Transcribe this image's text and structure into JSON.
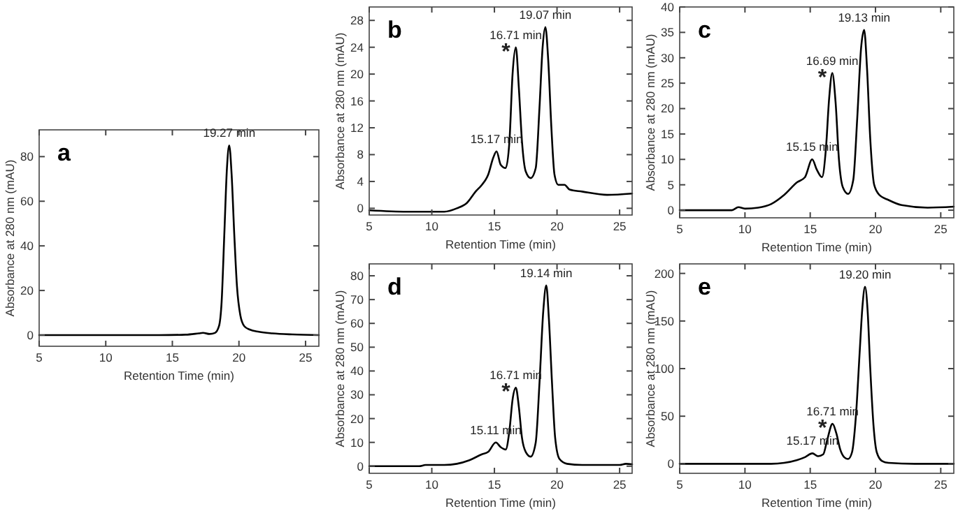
{
  "chart_data": [
    {
      "type": "line",
      "title": "a",
      "xlabel": "Retention Time (min)",
      "ylabel": "Absorbance at 280 nm (mAU)",
      "xlim": [
        5,
        26
      ],
      "ylim": [
        -5,
        92
      ],
      "xticks": [
        5,
        10,
        15,
        20,
        25
      ],
      "yticks": [
        0,
        20,
        40,
        60,
        80
      ],
      "series": [
        {
          "color": "#000000",
          "x": [
            5,
            8,
            11,
            14,
            16,
            17,
            17.3,
            17.8,
            18.2,
            18.5,
            18.7,
            18.9,
            19.1,
            19.27,
            19.45,
            19.65,
            19.85,
            20.1,
            20.4,
            20.8,
            21.5,
            22.5,
            24,
            26
          ],
          "values": [
            0,
            0,
            0,
            0,
            0.2,
            0.8,
            1,
            0.5,
            1,
            4,
            15,
            45,
            75,
            85,
            72,
            45,
            22,
            9,
            4,
            2.5,
            1.5,
            0.8,
            0.3,
            0
          ]
        }
      ],
      "annotations": [
        {
          "text": "19.27 min",
          "x": 19.27,
          "y": 85
        }
      ]
    },
    {
      "type": "line",
      "title": "b",
      "xlabel": "Retention Time (min)",
      "ylabel": "Absorbance at 280 nm (mAU)",
      "xlim": [
        5,
        26
      ],
      "ylim": [
        -1,
        30
      ],
      "xticks": [
        5,
        10,
        15,
        20,
        25
      ],
      "yticks": [
        0,
        4,
        8,
        12,
        16,
        20,
        24,
        28
      ],
      "series": [
        {
          "color": "#000000",
          "x": [
            5,
            8,
            11,
            12,
            12.8,
            13.5,
            14,
            14.5,
            14.9,
            15.17,
            15.5,
            15.9,
            16.2,
            16.45,
            16.71,
            16.95,
            17.2,
            17.5,
            17.9,
            18.3,
            18.6,
            18.85,
            19.07,
            19.3,
            19.55,
            19.8,
            20.1,
            20.6,
            21,
            22,
            24,
            26
          ],
          "values": [
            -0.3,
            -0.5,
            -0.5,
            0,
            0.8,
            2.5,
            3.5,
            5,
            7.5,
            8.5,
            6.5,
            6,
            10,
            20,
            24,
            18,
            10,
            5.5,
            4.5,
            6,
            15,
            24,
            27,
            22,
            12,
            5,
            3.5,
            3.5,
            2.8,
            2.5,
            2,
            2.2
          ]
        }
      ],
      "annotations": [
        {
          "text": "15.17 min",
          "x": 15.17,
          "y": 8.5
        },
        {
          "text": "16.71 min",
          "x": 16.71,
          "y": 24
        },
        "*",
        {
          "text": "19.07 min",
          "x": 19.07,
          "y": 27
        }
      ]
    },
    {
      "type": "line",
      "title": "c",
      "xlabel": "Retention Time (min)",
      "ylabel": "Absorbance at 280 nm (mAU)",
      "xlim": [
        5,
        26
      ],
      "ylim": [
        -1.5,
        40
      ],
      "xticks": [
        5,
        10,
        15,
        20,
        25
      ],
      "yticks": [
        0,
        5,
        10,
        15,
        20,
        25,
        30,
        35,
        40
      ],
      "series": [
        {
          "color": "#000000",
          "x": [
            5,
            9,
            9.5,
            10,
            11,
            12,
            13,
            14,
            14.6,
            15.15,
            15.5,
            15.9,
            16.2,
            16.45,
            16.69,
            16.95,
            17.2,
            17.5,
            17.9,
            18.3,
            18.6,
            18.9,
            19.13,
            19.35,
            19.6,
            19.9,
            20.3,
            21,
            22,
            24,
            26
          ],
          "values": [
            0,
            0,
            0.6,
            0.3,
            0.5,
            1.2,
            3,
            5.5,
            6.5,
            10,
            8,
            6.5,
            12,
            22,
            27,
            21,
            10,
            4.5,
            3.2,
            6,
            18,
            32,
            35.5,
            28,
            14,
            5,
            3,
            2,
            1,
            0.5,
            0.7
          ]
        }
      ],
      "annotations": [
        {
          "text": "15.15 min",
          "x": 15.15,
          "y": 10
        },
        {
          "text": "16.69 min",
          "x": 16.69,
          "y": 27
        },
        "*",
        {
          "text": "19.13 min",
          "x": 19.13,
          "y": 35.5
        }
      ]
    },
    {
      "type": "line",
      "title": "d",
      "xlabel": "Retention Time (min)",
      "ylabel": "Absorbance at 280 nm (mAU)",
      "xlim": [
        5,
        26
      ],
      "ylim": [
        -3,
        85
      ],
      "xticks": [
        5,
        10,
        15,
        20,
        25
      ],
      "yticks": [
        0,
        10,
        20,
        30,
        40,
        50,
        60,
        70,
        80
      ],
      "series": [
        {
          "color": "#000000",
          "x": [
            5,
            9,
            9.5,
            11,
            12,
            13,
            14,
            14.5,
            15.11,
            15.5,
            15.9,
            16.2,
            16.45,
            16.71,
            16.95,
            17.2,
            17.5,
            17.9,
            18.3,
            18.6,
            18.9,
            19.14,
            19.35,
            19.6,
            19.85,
            20.2,
            20.8,
            22,
            25,
            25.5,
            26
          ],
          "values": [
            0,
            0,
            0.5,
            0.5,
            1,
            2.5,
            5,
            6,
            10,
            8,
            7,
            15,
            28,
            33,
            25,
            12,
            6,
            4,
            10,
            35,
            65,
            76,
            62,
            35,
            12,
            3,
            1,
            0.5,
            0.5,
            1,
            0.8
          ]
        }
      ],
      "annotations": [
        {
          "text": "15.11 min",
          "x": 15.11,
          "y": 10
        },
        {
          "text": "16.71 min",
          "x": 16.71,
          "y": 33
        },
        "*",
        {
          "text": "19.14 min",
          "x": 19.14,
          "y": 76
        }
      ]
    },
    {
      "type": "line",
      "title": "e",
      "xlabel": "Retention Time (min)",
      "ylabel": "Absorbance at 280 nm (mAU)",
      "xlim": [
        5,
        26
      ],
      "ylim": [
        -10,
        210
      ],
      "xticks": [
        5,
        10,
        15,
        20,
        25
      ],
      "yticks": [
        0,
        50,
        100,
        150,
        200
      ],
      "series": [
        {
          "color": "#000000",
          "x": [
            5,
            12,
            13,
            14,
            14.6,
            15.17,
            15.6,
            16,
            16.3,
            16.71,
            17,
            17.3,
            17.6,
            17.9,
            18.2,
            18.5,
            18.8,
            19,
            19.2,
            19.4,
            19.6,
            19.85,
            20.1,
            20.5,
            21,
            23,
            26
          ],
          "values": [
            0,
            0,
            1,
            4,
            7,
            11,
            8,
            10,
            25,
            42,
            32,
            15,
            7,
            5,
            12,
            50,
            120,
            165,
            186,
            160,
            100,
            40,
            12,
            3,
            1,
            0,
            0
          ]
        }
      ],
      "annotations": [
        {
          "text": "15.17 min",
          "x": 15.17,
          "y": 11
        },
        {
          "text": "16.71 min",
          "x": 16.71,
          "y": 42
        },
        "*",
        {
          "text": "19.20 min",
          "x": 19.2,
          "y": 186
        }
      ]
    }
  ]
}
